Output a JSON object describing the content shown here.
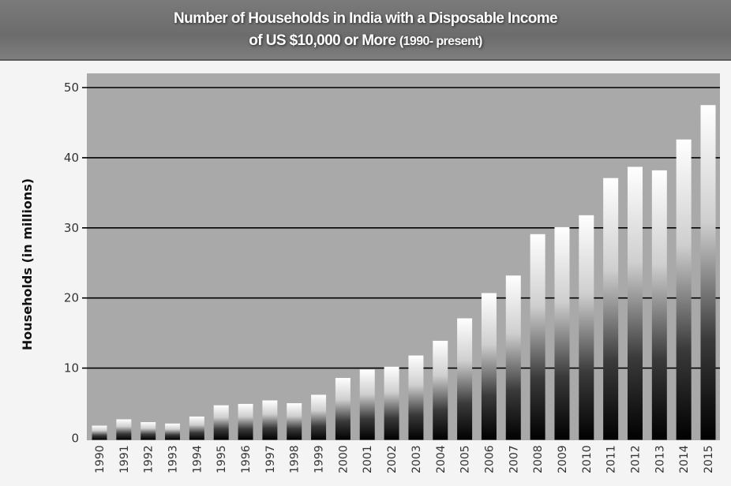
{
  "chart_data": {
    "type": "bar",
    "title": "Number of Households in India with a Disposable Income",
    "title_line2": "of  US $10,000 or More",
    "title_suffix": "(1990- present)",
    "xlabel": "",
    "ylabel": "Households (in millions)",
    "ylim": [
      0,
      50
    ],
    "yticks": [
      "0",
      "10",
      "20",
      "30",
      "40",
      "50"
    ],
    "grid": true,
    "categories": [
      "1990",
      "1991",
      "1992",
      "1993",
      "1994",
      "1995",
      "1996",
      "1997",
      "1998",
      "1999",
      "2000",
      "2001",
      "2002",
      "2003",
      "2004",
      "2005",
      "2006",
      "2007",
      "2008",
      "2009",
      "2010",
      "2011",
      "2012",
      "2013",
      "2014",
      "2015"
    ],
    "values": [
      1.8,
      2.7,
      2.3,
      2.1,
      3.1,
      4.7,
      4.9,
      5.4,
      5.0,
      6.2,
      8.6,
      9.8,
      10.2,
      11.8,
      13.9,
      17.1,
      20.7,
      23.2,
      29.1,
      30.1,
      31.8,
      37.1,
      38.7,
      38.2,
      42.6,
      47.5
    ],
    "colors": {
      "plot_background": "#a9a9a9",
      "bar_top": "#ffffff",
      "bar_bottom": "#000000",
      "gridline": "#000000"
    }
  }
}
